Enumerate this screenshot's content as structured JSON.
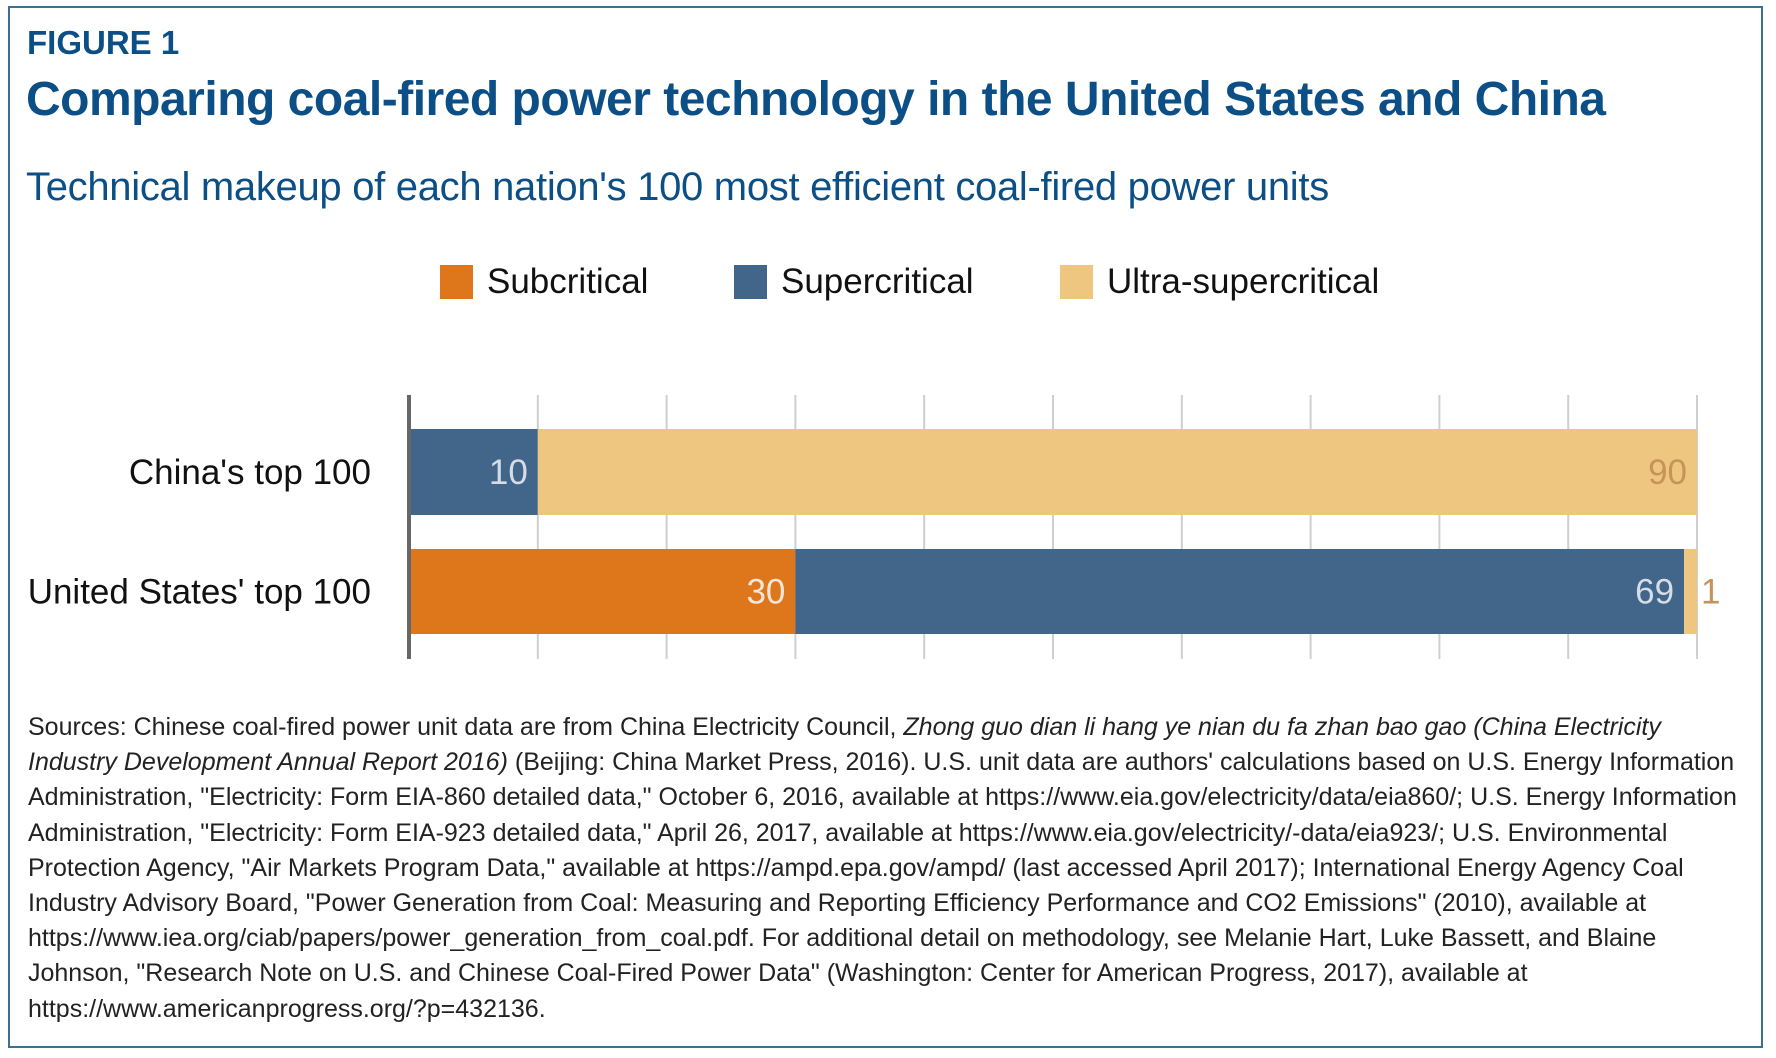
{
  "figure_label": "FIGURE 1",
  "chart_data": {
    "type": "bar",
    "orientation": "horizontal",
    "stacked": true,
    "title": "Comparing coal-fired power technology in the United States and China",
    "subtitle": "Technical makeup of each nation's 100 most efficient coal-fired power units",
    "categories": [
      "China's top 100",
      "United States' top 100"
    ],
    "series": [
      {
        "name": "Subcritical",
        "color": "#DE761C",
        "values": [
          0,
          30
        ]
      },
      {
        "name": "Supercritical",
        "color": "#41668A",
        "values": [
          10,
          69
        ]
      },
      {
        "name": "Ultra-supercritical",
        "color": "#EFC67F",
        "values": [
          90,
          1
        ]
      }
    ],
    "data_labels": [
      [
        "",
        "30"
      ],
      [
        "10",
        "69"
      ],
      [
        "90",
        "1"
      ]
    ],
    "xlim": [
      0,
      100
    ],
    "grid": true,
    "legend_position": "top"
  },
  "sources": {
    "p1": "Sources: Chinese coal-fired power unit data are from China Electricity Council, ",
    "italic": "Zhong guo dian li hang ye nian du fa zhan bao gao (China Electricity Industry Development Annual Report 2016)",
    "p2": " (Beijing: China Market Press, 2016). U.S. unit data are authors' calculations based on U.S. Energy Information Administration, \"Electricity: Form EIA-860 detailed data,\" October 6, 2016, available at https://www.eia.gov/electricity/data/eia860/; U.S. Energy Information Administration, \"Electricity: Form EIA-923 detailed data,\" April 26, 2017, available at https://www.eia.gov/electricity/-data/eia923/; U.S. Environmental Protection Agency, \"Air Markets Program Data,\" available at https://ampd.epa.gov/ampd/ (last accessed April 2017); International Energy Agency Coal Industry Advisory Board, \"Power Generation from Coal: Measuring and Reporting Efficiency Performance and CO2 Emissions\" (2010), available at https://www.iea.org/ciab/papers/power_generation_from_coal.pdf. For additional detail on methodology, see Melanie Hart, Luke Bassett, and Blaine Johnson, \"Research Note on U.S. and Chinese Coal-Fired Power Data\" (Washington: Center for American Progress, 2017), available at https://www.americanprogress.org/?p=432136."
  }
}
